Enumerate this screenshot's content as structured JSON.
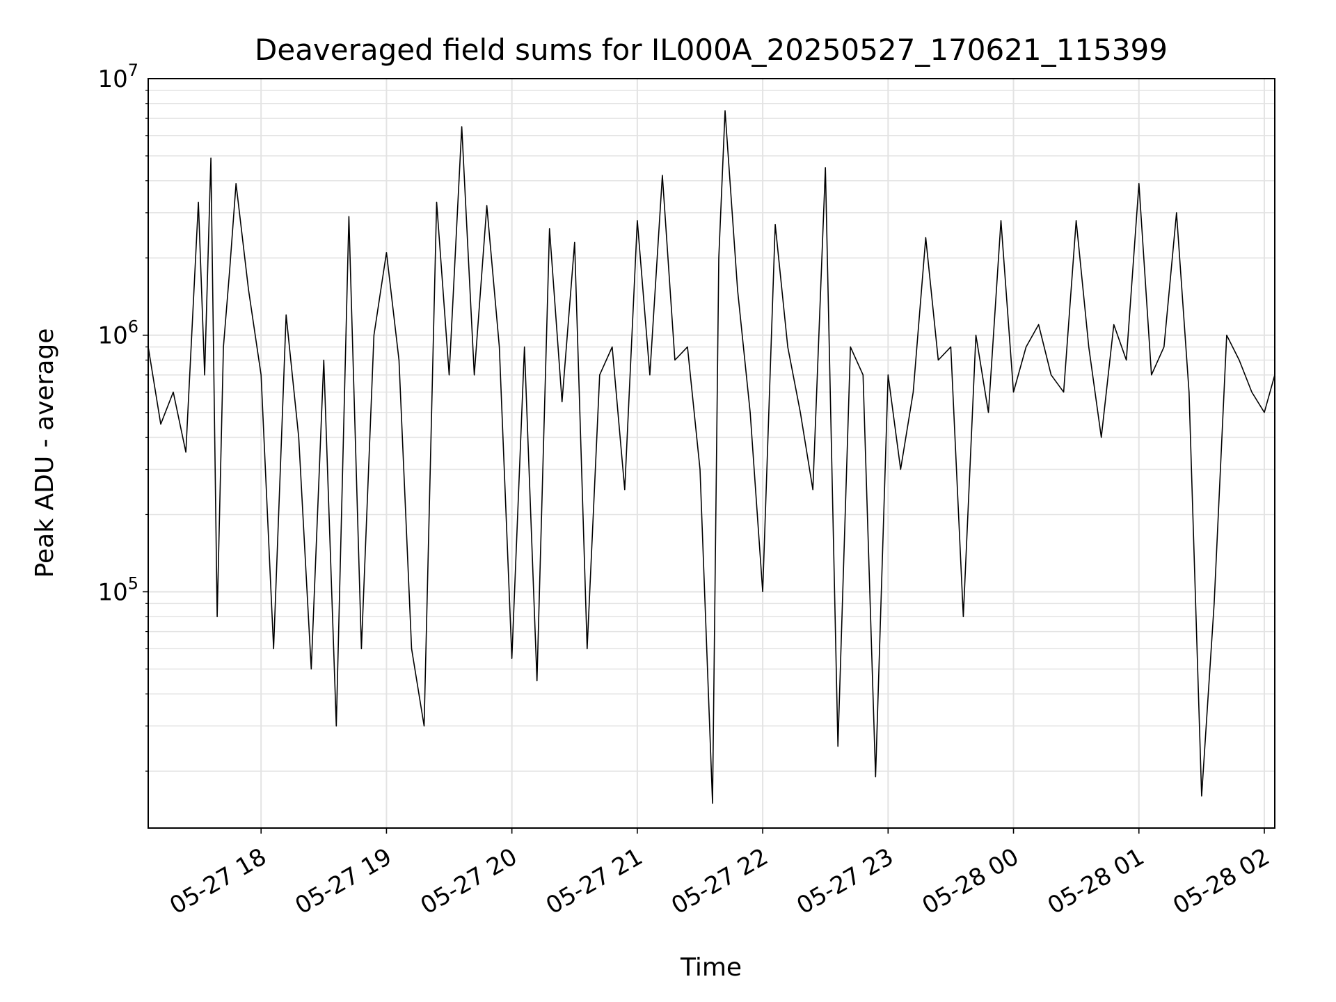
{
  "chart_data": {
    "type": "line",
    "title": "Deaveraged field sums for IL000A_20250527_170621_115399",
    "xlabel": "Time",
    "ylabel": "Peak ADU - average",
    "yscale": "log",
    "ylim": [
      12000,
      10000000
    ],
    "xlim": [
      "2025-05-27 17:06",
      "2025-05-28 02:05"
    ],
    "grid": true,
    "x_ticks": [
      {
        "value": "2025-05-27 18:00",
        "label": "05-27 18"
      },
      {
        "value": "2025-05-27 19:00",
        "label": "05-27 19"
      },
      {
        "value": "2025-05-27 20:00",
        "label": "05-27 20"
      },
      {
        "value": "2025-05-27 21:00",
        "label": "05-27 21"
      },
      {
        "value": "2025-05-27 22:00",
        "label": "05-27 22"
      },
      {
        "value": "2025-05-27 23:00",
        "label": "05-27 23"
      },
      {
        "value": "2025-05-28 00:00",
        "label": "05-28 00"
      },
      {
        "value": "2025-05-28 01:00",
        "label": "05-28 01"
      },
      {
        "value": "2025-05-28 02:00",
        "label": "05-28 02"
      }
    ],
    "y_ticks": [
      {
        "value": 100000,
        "base": "10",
        "exp": "5"
      },
      {
        "value": 1000000,
        "base": "10",
        "exp": "6"
      },
      {
        "value": 10000000,
        "base": "10",
        "exp": "7"
      }
    ],
    "series": [
      {
        "color": "#000000",
        "x": [
          "2025-05-27 17:06",
          "2025-05-27 17:12",
          "2025-05-27 17:18",
          "2025-05-27 17:24",
          "2025-05-27 17:30",
          "2025-05-27 17:33",
          "2025-05-27 17:36",
          "2025-05-27 17:39",
          "2025-05-27 17:42",
          "2025-05-27 17:45",
          "2025-05-27 17:48",
          "2025-05-27 17:54",
          "2025-05-27 18:00",
          "2025-05-27 18:06",
          "2025-05-27 18:12",
          "2025-05-27 18:18",
          "2025-05-27 18:24",
          "2025-05-27 18:30",
          "2025-05-27 18:36",
          "2025-05-27 18:42",
          "2025-05-27 18:48",
          "2025-05-27 18:54",
          "2025-05-27 19:00",
          "2025-05-27 19:06",
          "2025-05-27 19:12",
          "2025-05-27 19:18",
          "2025-05-27 19:24",
          "2025-05-27 19:30",
          "2025-05-27 19:36",
          "2025-05-27 19:42",
          "2025-05-27 19:48",
          "2025-05-27 19:54",
          "2025-05-27 20:00",
          "2025-05-27 20:06",
          "2025-05-27 20:12",
          "2025-05-27 20:18",
          "2025-05-27 20:24",
          "2025-05-27 20:30",
          "2025-05-27 20:36",
          "2025-05-27 20:42",
          "2025-05-27 20:48",
          "2025-05-27 20:54",
          "2025-05-27 21:00",
          "2025-05-27 21:06",
          "2025-05-27 21:12",
          "2025-05-27 21:18",
          "2025-05-27 21:24",
          "2025-05-27 21:30",
          "2025-05-27 21:36",
          "2025-05-27 21:39",
          "2025-05-27 21:42",
          "2025-05-27 21:48",
          "2025-05-27 21:54",
          "2025-05-27 22:00",
          "2025-05-27 22:06",
          "2025-05-27 22:12",
          "2025-05-27 22:18",
          "2025-05-27 22:24",
          "2025-05-27 22:30",
          "2025-05-27 22:36",
          "2025-05-27 22:42",
          "2025-05-27 22:48",
          "2025-05-27 22:54",
          "2025-05-27 23:00",
          "2025-05-27 23:06",
          "2025-05-27 23:12",
          "2025-05-27 23:18",
          "2025-05-27 23:24",
          "2025-05-27 23:30",
          "2025-05-27 23:36",
          "2025-05-27 23:42",
          "2025-05-27 23:48",
          "2025-05-27 23:54",
          "2025-05-28 00:00",
          "2025-05-28 00:06",
          "2025-05-28 00:12",
          "2025-05-28 00:18",
          "2025-05-28 00:24",
          "2025-05-28 00:30",
          "2025-05-28 00:36",
          "2025-05-28 00:42",
          "2025-05-28 00:48",
          "2025-05-28 00:54",
          "2025-05-28 01:00",
          "2025-05-28 01:06",
          "2025-05-28 01:12",
          "2025-05-28 01:18",
          "2025-05-28 01:24",
          "2025-05-28 01:30",
          "2025-05-28 01:36",
          "2025-05-28 01:42",
          "2025-05-28 01:48",
          "2025-05-28 01:54",
          "2025-05-28 02:00",
          "2025-05-28 02:05"
        ],
        "y": [
          900000,
          450000,
          600000,
          350000,
          3300000,
          700000,
          4900000,
          80000,
          900000,
          1800000,
          3900000,
          1500000,
          700000,
          60000,
          1200000,
          400000,
          50000,
          800000,
          30000,
          2900000,
          60000,
          1000000,
          2100000,
          800000,
          60000,
          30000,
          3300000,
          700000,
          6500000,
          700000,
          3200000,
          900000,
          55000,
          900000,
          45000,
          2600000,
          550000,
          2300000,
          60000,
          700000,
          900000,
          250000,
          2800000,
          700000,
          4200000,
          800000,
          900000,
          300000,
          15000,
          2000000,
          7500000,
          1500000,
          500000,
          100000,
          2700000,
          900000,
          500000,
          250000,
          4500000,
          25000,
          900000,
          700000,
          19000,
          700000,
          300000,
          600000,
          2400000,
          800000,
          900000,
          80000,
          1000000,
          500000,
          2800000,
          600000,
          900000,
          1100000,
          700000,
          600000,
          2800000,
          900000,
          400000,
          1100000,
          800000,
          3900000,
          700000,
          900000,
          3000000,
          600000,
          16000,
          90000,
          1000000,
          800000,
          600000,
          500000,
          700000
        ]
      }
    ]
  }
}
